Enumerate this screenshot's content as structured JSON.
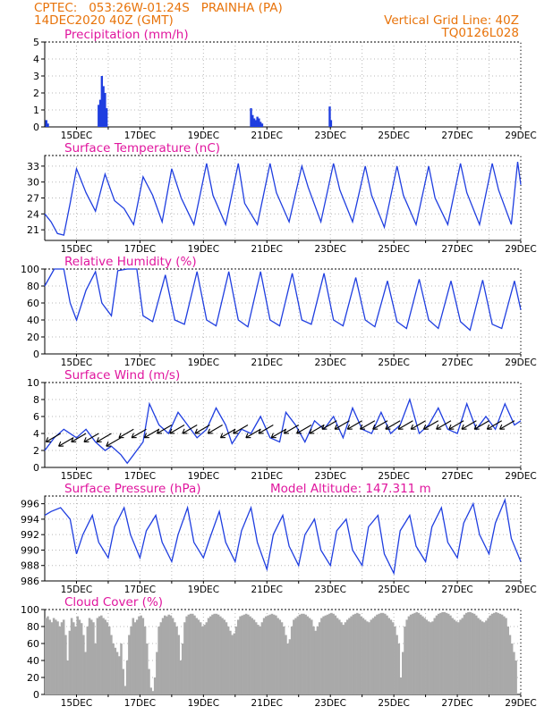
{
  "header": {
    "line1_left": "CPTEC:   053:26W-01:24S   PRAINHA (PA)",
    "line2_left": "14DEC2020 40Z (GMT)",
    "line1_right": "Vertical Grid Line: 40Z",
    "line2_right": "TQ0126L028"
  },
  "colors": {
    "title": "#e0169e",
    "header": "#e8730a",
    "line": "#1f3ee0",
    "cloud": "#a9a9a9",
    "wind_arrow": "#000000"
  },
  "x_ticks": [
    "15DEC",
    "17DEC",
    "19DEC",
    "21DEC",
    "23DEC",
    "25DEC",
    "27DEC",
    "29DEC"
  ],
  "chart_data": [
    {
      "type": "bar",
      "title": "Precipitation (mm/h)",
      "ylim": [
        0,
        5
      ],
      "yticks": [
        "0",
        "1",
        "2",
        "3",
        "4",
        "5"
      ],
      "xrange_days": [
        14.0,
        29.0
      ],
      "grid": true,
      "x": [
        14.05,
        14.1,
        15.7,
        15.75,
        15.8,
        15.85,
        15.9,
        15.95,
        20.5,
        20.55,
        20.6,
        20.65,
        20.7,
        20.75,
        20.8,
        20.85,
        22.98,
        23.02
      ],
      "values": [
        0.4,
        0.2,
        1.3,
        1.6,
        3.0,
        2.4,
        2.0,
        1.1,
        1.1,
        0.7,
        0.5,
        0.4,
        0.6,
        0.5,
        0.3,
        0.2,
        1.2,
        0.4
      ]
    },
    {
      "type": "line",
      "title": "Surface Temperature (nC)",
      "ylim": [
        19,
        35
      ],
      "yticks": [
        "21",
        "24",
        "27",
        "30",
        "33"
      ],
      "xrange_days": [
        14.0,
        29.0
      ],
      "grid": true,
      "x": [
        14.0,
        14.2,
        14.4,
        14.6,
        14.8,
        15.0,
        15.3,
        15.6,
        15.9,
        16.2,
        16.5,
        16.8,
        17.1,
        17.4,
        17.7,
        18.0,
        18.3,
        18.7,
        19.1,
        19.3,
        19.7,
        20.1,
        20.3,
        20.7,
        21.1,
        21.3,
        21.7,
        22.1,
        22.3,
        22.7,
        23.1,
        23.3,
        23.7,
        24.1,
        24.3,
        24.7,
        25.1,
        25.3,
        25.7,
        26.1,
        26.3,
        26.7,
        27.1,
        27.3,
        27.7,
        28.1,
        28.3,
        28.7,
        28.9,
        29.0
      ],
      "values": [
        24.0,
        22.5,
        20.3,
        20.0,
        26.0,
        32.5,
        28.0,
        24.5,
        31.5,
        26.5,
        25.0,
        22.0,
        31.0,
        27.5,
        22.5,
        32.5,
        27.0,
        22.0,
        33.5,
        27.5,
        22.0,
        33.5,
        26.0,
        22.0,
        33.5,
        28.0,
        22.5,
        33.0,
        29.0,
        22.5,
        33.5,
        28.5,
        22.5,
        33.0,
        27.5,
        21.5,
        33.0,
        27.5,
        22.0,
        33.0,
        27.0,
        22.0,
        33.5,
        28.0,
        22.0,
        33.5,
        28.5,
        22.0,
        33.8,
        29.5
      ]
    },
    {
      "type": "line",
      "title": "Relative Humidity (%)",
      "ylim": [
        0,
        100
      ],
      "yticks": [
        "0",
        "20",
        "40",
        "60",
        "80",
        "100"
      ],
      "xrange_days": [
        14.0,
        29.0
      ],
      "grid": true,
      "x": [
        14.0,
        14.15,
        14.3,
        14.6,
        14.8,
        15.0,
        15.3,
        15.6,
        15.8,
        16.1,
        16.3,
        16.6,
        16.9,
        17.1,
        17.4,
        17.8,
        18.1,
        18.4,
        18.8,
        19.1,
        19.4,
        19.8,
        20.1,
        20.4,
        20.8,
        21.1,
        21.4,
        21.8,
        22.1,
        22.4,
        22.8,
        23.1,
        23.4,
        23.8,
        24.1,
        24.4,
        24.8,
        25.1,
        25.4,
        25.8,
        26.1,
        26.4,
        26.8,
        27.1,
        27.4,
        27.8,
        28.1,
        28.4,
        28.8,
        29.0
      ],
      "values": [
        80.0,
        90.0,
        100.0,
        100.0,
        60.0,
        40.0,
        75.0,
        97.0,
        60.0,
        45.0,
        98.0,
        100.0,
        100.0,
        45.0,
        38.0,
        93.0,
        40.0,
        35.0,
        97.0,
        40.0,
        33.0,
        97.0,
        40.0,
        32.0,
        97.0,
        40.0,
        33.0,
        95.0,
        40.0,
        35.0,
        95.0,
        40.0,
        33.0,
        90.0,
        40.0,
        32.0,
        86.0,
        38.0,
        30.0,
        88.0,
        40.0,
        30.0,
        86.0,
        38.0,
        28.0,
        87.0,
        35.0,
        30.0,
        86.0,
        52.0
      ]
    },
    {
      "type": "line",
      "title": "Surface Wind (m/s)",
      "ylim": [
        0,
        10
      ],
      "yticks": [
        "0",
        "2",
        "4",
        "6",
        "8",
        "10"
      ],
      "xrange_days": [
        14.0,
        29.0
      ],
      "grid": true,
      "x": [
        14.0,
        14.3,
        14.6,
        15.0,
        15.3,
        15.6,
        15.9,
        16.1,
        16.4,
        16.6,
        16.8,
        17.1,
        17.3,
        17.6,
        17.9,
        18.2,
        18.5,
        18.8,
        19.1,
        19.4,
        19.7,
        19.9,
        20.2,
        20.5,
        20.8,
        21.1,
        21.4,
        21.6,
        21.9,
        22.2,
        22.5,
        22.8,
        23.1,
        23.4,
        23.7,
        24.0,
        24.3,
        24.6,
        24.9,
        25.2,
        25.5,
        25.8,
        26.1,
        26.4,
        26.7,
        27.0,
        27.3,
        27.6,
        27.9,
        28.2,
        28.5,
        28.8,
        29.0
      ],
      "values": [
        2.0,
        3.5,
        4.5,
        3.5,
        4.5,
        3.0,
        2.0,
        2.5,
        1.5,
        0.5,
        1.5,
        3.0,
        7.5,
        5.0,
        4.0,
        6.5,
        5.0,
        3.5,
        4.5,
        7.0,
        5.0,
        2.8,
        4.5,
        4.0,
        6.0,
        3.5,
        3.0,
        6.5,
        5.0,
        3.0,
        5.5,
        4.5,
        6.0,
        3.5,
        7.0,
        4.5,
        4.0,
        6.5,
        4.0,
        5.0,
        8.0,
        4.0,
        5.0,
        7.0,
        4.5,
        4.0,
        7.5,
        4.5,
        6.0,
        4.5,
        7.5,
        5.0,
        5.5
      ],
      "wind_arrows": [
        [
          14.5,
          4.0
        ],
        [
          14.9,
          3.5
        ],
        [
          15.3,
          4.0
        ],
        [
          15.7,
          4.0
        ],
        [
          16.1,
          4.0
        ],
        [
          16.4,
          3.5
        ],
        [
          16.8,
          4.5
        ],
        [
          17.2,
          4.5
        ],
        [
          17.6,
          4.5
        ],
        [
          18.0,
          5.0
        ],
        [
          18.4,
          5.0
        ],
        [
          18.8,
          5.0
        ],
        [
          19.2,
          5.0
        ],
        [
          19.6,
          5.0
        ],
        [
          20.0,
          4.5
        ],
        [
          20.4,
          5.0
        ],
        [
          20.8,
          4.5
        ],
        [
          21.2,
          5.0
        ],
        [
          21.6,
          4.5
        ],
        [
          22.0,
          5.0
        ],
        [
          22.4,
          5.0
        ],
        [
          22.8,
          5.0
        ],
        [
          23.2,
          5.5
        ],
        [
          23.6,
          5.5
        ],
        [
          24.0,
          5.5
        ],
        [
          24.4,
          5.5
        ],
        [
          24.8,
          5.5
        ],
        [
          25.2,
          5.5
        ],
        [
          25.6,
          5.5
        ],
        [
          26.0,
          5.5
        ],
        [
          26.4,
          5.5
        ],
        [
          26.8,
          5.5
        ],
        [
          27.2,
          5.5
        ],
        [
          27.6,
          5.5
        ],
        [
          28.0,
          5.5
        ],
        [
          28.4,
          5.5
        ],
        [
          28.8,
          5.5
        ]
      ]
    },
    {
      "type": "line",
      "title": "Surface Pressure (hPa)",
      "subtitle": "Model Altitude: 147.311 m",
      "ylim": [
        986,
        997
      ],
      "yticks": [
        "986",
        "988",
        "990",
        "992",
        "994",
        "996"
      ],
      "xrange_days": [
        14.0,
        29.0
      ],
      "grid": true,
      "x": [
        14.0,
        14.2,
        14.5,
        14.8,
        15.0,
        15.2,
        15.5,
        15.7,
        16.0,
        16.2,
        16.5,
        16.7,
        17.0,
        17.2,
        17.5,
        17.7,
        18.0,
        18.2,
        18.5,
        18.7,
        19.0,
        19.2,
        19.5,
        19.7,
        20.0,
        20.2,
        20.5,
        20.7,
        21.0,
        21.2,
        21.5,
        21.7,
        22.0,
        22.2,
        22.5,
        22.7,
        23.0,
        23.2,
        23.5,
        23.7,
        24.0,
        24.2,
        24.5,
        24.7,
        25.0,
        25.2,
        25.5,
        25.7,
        26.0,
        26.2,
        26.5,
        26.7,
        27.0,
        27.2,
        27.5,
        27.7,
        28.0,
        28.2,
        28.5,
        28.7,
        29.0
      ],
      "values": [
        994.5,
        995.0,
        995.5,
        994.0,
        989.5,
        992.0,
        994.5,
        991.0,
        989.0,
        993.0,
        995.5,
        992.0,
        989.0,
        992.5,
        994.5,
        991.0,
        988.5,
        992.0,
        995.5,
        991.0,
        989.0,
        991.5,
        995.0,
        991.0,
        988.5,
        992.5,
        995.5,
        991.0,
        987.5,
        992.0,
        994.5,
        990.5,
        988.0,
        992.0,
        994.0,
        990.0,
        988.0,
        992.5,
        994.0,
        990.0,
        988.0,
        993.0,
        994.5,
        989.5,
        987.0,
        992.5,
        994.5,
        990.5,
        988.5,
        993.0,
        995.5,
        991.0,
        989.0,
        993.5,
        996.0,
        992.0,
        989.5,
        993.5,
        996.5,
        991.5,
        988.5
      ]
    },
    {
      "type": "bar",
      "title": "Cloud Cover (%)",
      "ylim": [
        0,
        100
      ],
      "yticks": [
        "0",
        "20",
        "40",
        "60",
        "80",
        "100"
      ],
      "xrange_days": [
        14.0,
        29.0
      ],
      "grid": true,
      "daily_pattern_note": "",
      "x_start": 14.0,
      "x_step": 0.0625,
      "values": [
        90,
        92,
        88,
        85,
        90,
        88,
        86,
        80,
        85,
        88,
        70,
        40,
        75,
        90,
        85,
        80,
        92,
        88,
        84,
        70,
        50,
        80,
        90,
        88,
        85,
        60,
        90,
        92,
        93,
        90,
        88,
        85,
        80,
        70,
        60,
        55,
        50,
        45,
        60,
        30,
        10,
        40,
        70,
        80,
        90,
        85,
        88,
        92,
        93,
        90,
        80,
        60,
        30,
        8,
        4,
        20,
        50,
        80,
        85,
        90,
        93,
        92,
        94,
        93,
        90,
        85,
        80,
        70,
        40,
        60,
        85,
        92,
        94,
        95,
        95,
        93,
        90,
        88,
        85,
        80,
        82,
        85,
        90,
        92,
        94,
        95,
        95,
        94,
        92,
        90,
        88,
        85,
        80,
        75,
        70,
        72,
        80,
        88,
        92,
        93,
        94,
        95,
        94,
        92,
        90,
        88,
        85,
        82,
        80,
        85,
        90,
        92,
        93,
        94,
        95,
        94,
        93,
        90,
        88,
        85,
        80,
        70,
        60,
        65,
        80,
        88,
        90,
        92,
        94,
        95,
        95,
        94,
        92,
        90,
        88,
        80,
        75,
        80,
        85,
        90,
        92,
        93,
        94,
        95,
        96,
        95,
        93,
        90,
        88,
        85,
        82,
        85,
        88,
        90,
        92,
        94,
        95,
        96,
        95,
        92,
        90,
        88,
        86,
        85,
        88,
        90,
        92,
        94,
        95,
        96,
        96,
        95,
        93,
        90,
        88,
        85,
        80,
        70,
        60,
        20,
        50,
        80,
        88,
        92,
        94,
        95,
        96,
        97,
        96,
        94,
        92,
        90,
        88,
        86,
        85,
        86,
        90,
        93,
        95,
        96,
        97,
        97,
        96,
        95,
        93,
        90,
        88,
        86,
        85,
        88,
        90,
        94,
        96,
        97,
        97,
        96,
        95,
        93,
        90,
        88,
        86,
        85,
        87,
        90,
        93,
        95,
        96,
        97,
        96,
        95,
        94,
        92,
        90,
        80,
        70,
        60,
        50,
        40
      ]
    }
  ]
}
